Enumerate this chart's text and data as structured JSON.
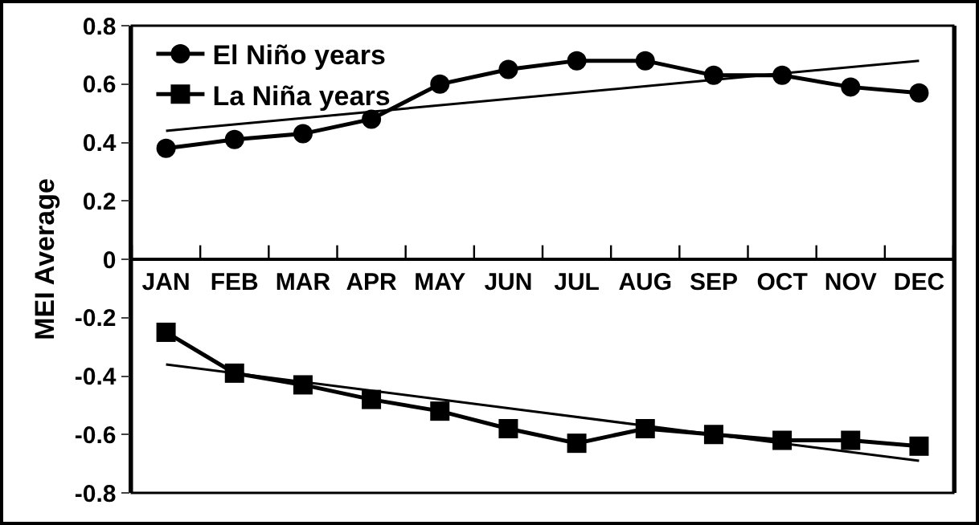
{
  "chart_data": {
    "type": "line",
    "ylabel": "MEI Average",
    "categories": [
      "JAN",
      "FEB",
      "MAR",
      "APR",
      "MAY",
      "JUN",
      "JUL",
      "AUG",
      "SEP",
      "OCT",
      "NOV",
      "DEC"
    ],
    "series": [
      {
        "name": "El Niño years",
        "color": "#000000",
        "marker": "circle",
        "values": [
          0.38,
          0.41,
          0.43,
          0.48,
          0.6,
          0.65,
          0.68,
          0.68,
          0.63,
          0.63,
          0.59,
          0.57
        ]
      },
      {
        "name": "La Niña years",
        "color": "#000000",
        "marker": "square",
        "values": [
          -0.25,
          -0.39,
          -0.43,
          -0.48,
          -0.52,
          -0.58,
          -0.63,
          -0.58,
          -0.6,
          -0.62,
          -0.62,
          -0.64
        ]
      },
      {
        "type": "line",
        "color": "#000000",
        "marker": "none",
        "x": [
          "JAN",
          "DEC"
        ],
        "values": [
          0.44,
          0.68
        ]
      },
      {
        "type": "line",
        "color": "#000000",
        "marker": "none",
        "x": [
          "JAN",
          "DEC"
        ],
        "values": [
          -0.36,
          -0.69
        ]
      }
    ],
    "ylim": [
      -0.8,
      0.8
    ],
    "yticks": [
      -0.8,
      -0.6,
      -0.4,
      -0.2,
      0,
      0.2,
      0.4,
      0.6,
      0.8
    ],
    "grid": false,
    "legend": "top left"
  }
}
